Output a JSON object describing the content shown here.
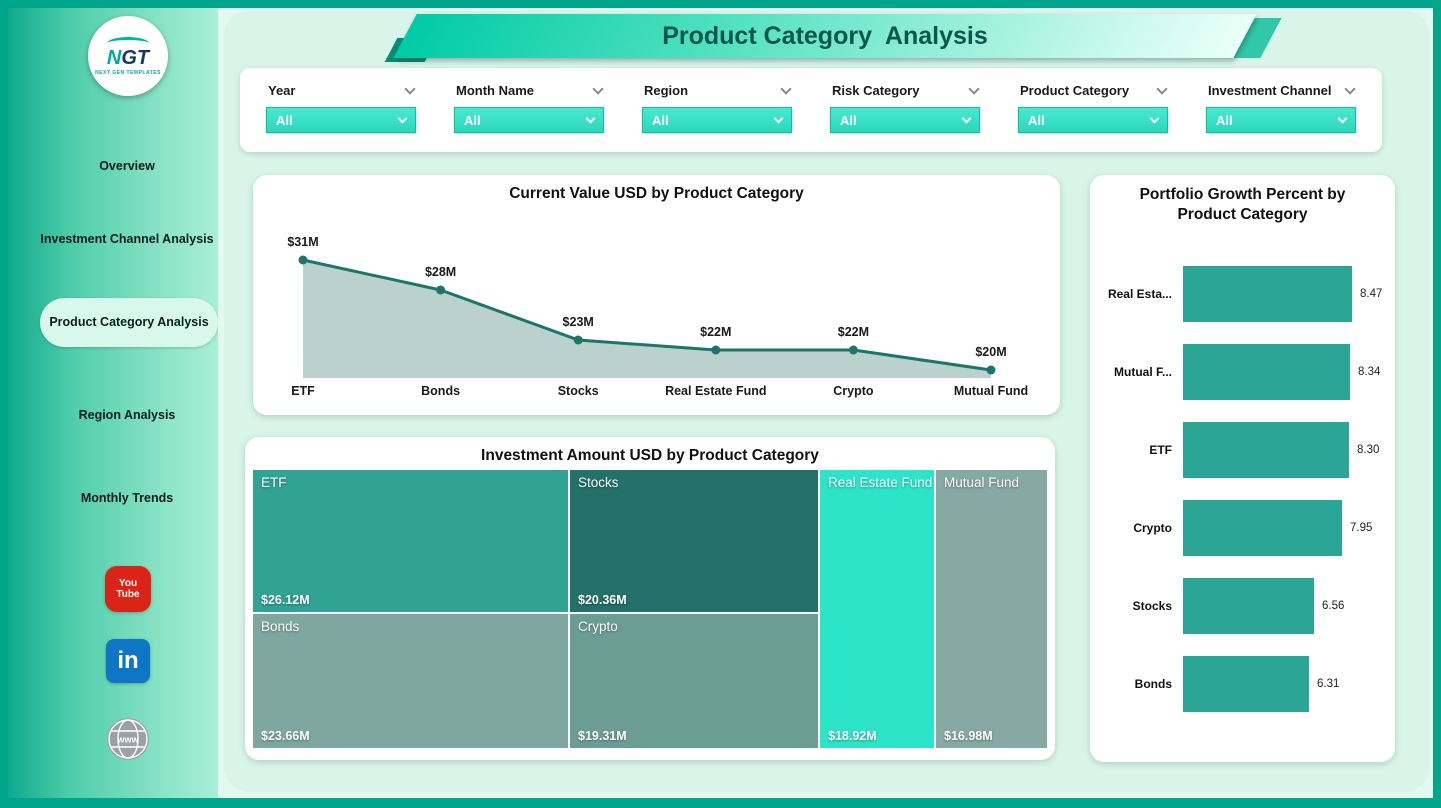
{
  "app": {
    "title": "Product Category  Analysis"
  },
  "sidebar": {
    "logo": {
      "text_n": "N",
      "text_gt": "GT",
      "subtext": "NEXT GEN TEMPLATES"
    },
    "items": [
      {
        "label": "Overview",
        "active": false
      },
      {
        "label": "Investment Channel Analysis",
        "active": false
      },
      {
        "label": "Product Category Analysis",
        "active": true
      },
      {
        "label": "Region Analysis",
        "active": false
      },
      {
        "label": "Monthly Trends",
        "active": false
      }
    ],
    "social": [
      {
        "name": "youtube",
        "line1": "You",
        "line2": "Tube"
      },
      {
        "name": "linkedin",
        "text": "in"
      },
      {
        "name": "website",
        "text": "www"
      }
    ]
  },
  "filters": [
    {
      "label": "Year",
      "value": "All"
    },
    {
      "label": "Month Name",
      "value": "All"
    },
    {
      "label": "Region",
      "value": "All"
    },
    {
      "label": "Risk Category",
      "value": "All"
    },
    {
      "label": "Product Category",
      "value": "All"
    },
    {
      "label": "Investment Channel",
      "value": "All"
    }
  ],
  "chart_data": [
    {
      "type": "area",
      "title": "Current Value USD by Product Category",
      "categories": [
        "ETF",
        "Bonds",
        "Stocks",
        "Real Estate Fund",
        "Crypto",
        "Mutual Fund"
      ],
      "values": [
        31,
        28,
        23,
        22,
        22,
        20
      ],
      "point_labels": [
        "$31M",
        "$28M",
        "$23M",
        "$22M",
        "$22M",
        "$20M"
      ],
      "line_color": "#1c756b",
      "fill_color": "#b7cfc9"
    },
    {
      "type": "treemap",
      "title": "Investment Amount USD by Product Category",
      "items": [
        {
          "name": "ETF",
          "value": 26.12,
          "label": "$26.12M",
          "color": "#30a394"
        },
        {
          "name": "Stocks",
          "value": 20.36,
          "label": "$20.36M",
          "color": "#237169"
        },
        {
          "name": "Real Estate Fund",
          "value": 18.92,
          "label": "$18.92M",
          "color": "#2ce5c8"
        },
        {
          "name": "Mutual Fund",
          "value": 16.98,
          "label": "$16.98M",
          "color": "#87a9a3"
        },
        {
          "name": "Bonds",
          "value": 23.66,
          "label": "$23.66M",
          "color": "#7ea89f"
        },
        {
          "name": "Crypto",
          "value": 19.31,
          "label": "$19.31M",
          "color": "#6c9d95"
        }
      ]
    },
    {
      "type": "bar",
      "title": "Portfolio Growth Percent by Product Category",
      "categories": [
        "Real Esta...",
        "Mutual F...",
        "ETF",
        "Crypto",
        "Stocks",
        "Bonds"
      ],
      "values": [
        8.47,
        8.34,
        8.3,
        7.95,
        6.56,
        6.31
      ],
      "value_labels": [
        "8.47",
        "8.34",
        "8.30",
        "7.95",
        "6.56",
        "6.31"
      ],
      "bar_color": "#2ba596",
      "xlim": [
        0,
        8.47
      ]
    }
  ]
}
